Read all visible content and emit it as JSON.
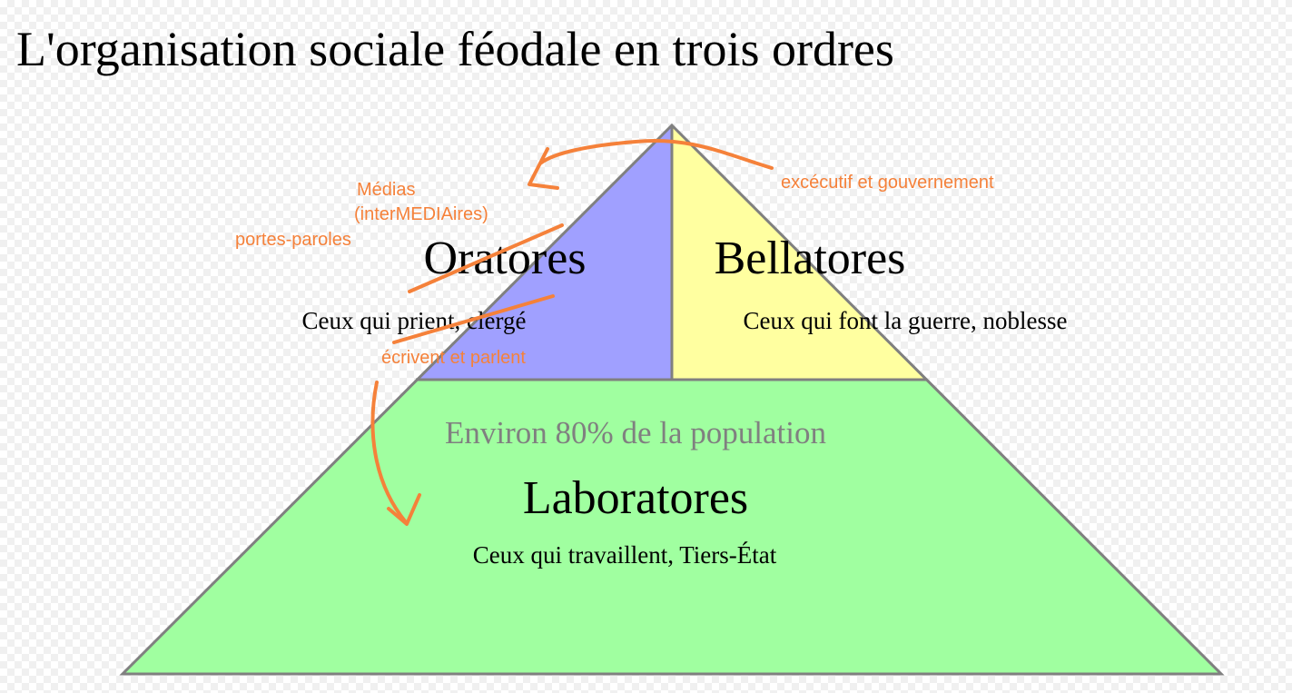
{
  "title": "L'organisation sociale féodale en trois ordres",
  "colors": {
    "oratores": "#a0a0ff",
    "bellatores": "#ffffa0",
    "laboratores": "#a0ffa0",
    "outline": "#808080",
    "annotation": "#f5813a"
  },
  "oratores": {
    "name": "Oratores",
    "description": "Ceux qui prient, clergé"
  },
  "bellatores": {
    "name": "Bellatores",
    "description": "Ceux qui font la guerre, noblesse"
  },
  "laboratores": {
    "share": "Environ 80% de la population",
    "name": "Laboratores",
    "description": "Ceux qui travaillent, Tiers-État"
  },
  "annotations": {
    "medias": "Médias",
    "intermediaires": "(interMEDIAires)",
    "portes_paroles": "portes-paroles",
    "ecrivent": "écrivent et parlent",
    "executif": "excécutif et gouvernement"
  }
}
